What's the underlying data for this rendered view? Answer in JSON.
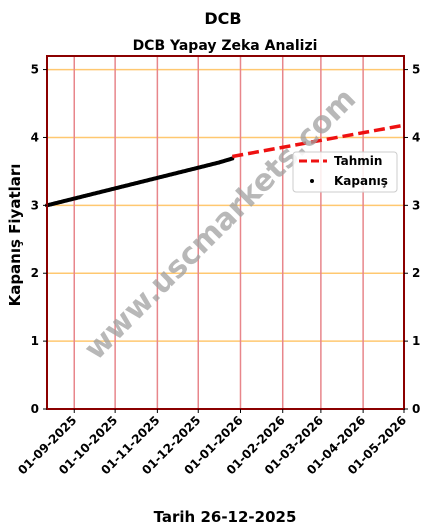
{
  "chart_data": {
    "type": "line",
    "suptitle": "DCB",
    "title": "DCB Yapay Zeka Analizi",
    "xlabel": "Tarih 26-12-2025",
    "ylabel": "Kapanış Fiyatları",
    "ylim": [
      0,
      5.2
    ],
    "y_ticks": [
      0,
      1,
      2,
      3,
      4,
      5
    ],
    "x_range": [
      "2025-08-12",
      "2026-05-01"
    ],
    "x_ticks": [
      "01-09-2025",
      "01-10-2025",
      "01-11-2025",
      "01-12-2025",
      "01-01-2026",
      "01-02-2026",
      "01-03-2026",
      "01-04-2026",
      "01-05-2026"
    ],
    "x_tick_dates": [
      "2025-09-01",
      "2025-10-01",
      "2025-11-01",
      "2025-12-01",
      "2026-01-01",
      "2026-02-01",
      "2026-03-01",
      "2026-04-01",
      "2026-05-01"
    ],
    "grid": true,
    "legend_position": "upper-right",
    "watermark": "www.uscmarkets.com",
    "series": [
      {
        "name": "Kapanış",
        "style": "scatter",
        "color": "#000000",
        "x": [
          "2025-08-12",
          "2025-08-26",
          "2025-09-09",
          "2025-09-23",
          "2025-10-07",
          "2025-10-21",
          "2025-11-04",
          "2025-11-18",
          "2025-12-02",
          "2025-12-16",
          "2025-12-26"
        ],
        "values": [
          3.0,
          3.07,
          3.14,
          3.21,
          3.28,
          3.35,
          3.42,
          3.49,
          3.56,
          3.63,
          3.69
        ]
      },
      {
        "name": "Tahmin",
        "style": "dashed",
        "color": "#ee1111",
        "x": [
          "2025-12-26",
          "2026-05-01"
        ],
        "values": [
          3.72,
          4.18
        ]
      }
    ],
    "colors": {
      "frame": "#8b0000",
      "vgrid": "#e8868b",
      "hgrid": "#ffc870"
    }
  }
}
